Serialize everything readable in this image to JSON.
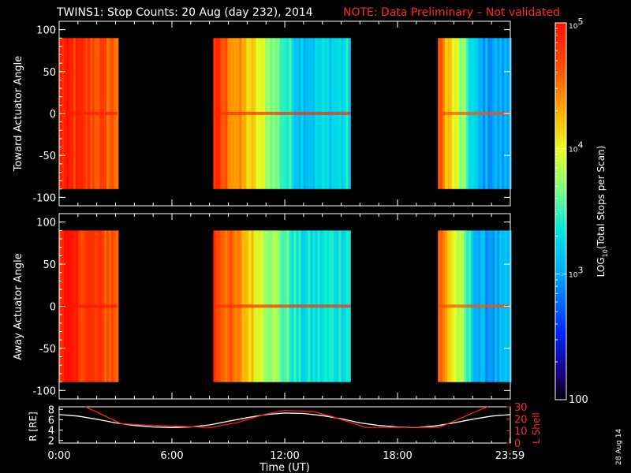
{
  "header": {
    "title": "TWINS1: Stop Counts: 20 Aug (day 232), 2014",
    "note": "NOTE: Data Preliminary – Not validated"
  },
  "footer": {
    "stamp": "28 Aug 14"
  },
  "colors": {
    "background": "#000000",
    "axes": "#ffffff",
    "note": "#ff2a2a",
    "l_shell_line": "#ff2020",
    "r_line": "#ffffff"
  },
  "chart_data": [
    {
      "id": "toward",
      "type": "heatmap",
      "ylabel": "Toward Actuator Angle",
      "ylim": [
        -110,
        110
      ],
      "yticks": [
        100,
        50,
        0,
        -50,
        -100
      ],
      "xlim": [
        0,
        24
      ],
      "data_y_range": [
        -90,
        90
      ],
      "scale": "log",
      "segments": [
        {
          "start": 0.0,
          "end": 3.1,
          "level_lo": 4.5,
          "level_hi": 4.9
        },
        {
          "start": 8.2,
          "end": 15.5,
          "level_lo": 3.2,
          "level_hi": 4.8
        },
        {
          "start": 20.15,
          "end": 24.0,
          "level_lo": 3.0,
          "level_hi": 4.6
        }
      ]
    },
    {
      "id": "away",
      "type": "heatmap",
      "ylabel": "Away Actuator Angle",
      "ylim": [
        -110,
        110
      ],
      "yticks": [
        100,
        50,
        0,
        -50,
        -100
      ],
      "xlim": [
        0,
        24
      ],
      "data_y_range": [
        -90,
        90
      ],
      "scale": "log",
      "segments": [
        {
          "start": 0.0,
          "end": 3.1,
          "level_lo": 4.4,
          "level_hi": 4.95
        },
        {
          "start": 8.2,
          "end": 15.5,
          "level_lo": 3.3,
          "level_hi": 4.8
        },
        {
          "start": 20.15,
          "end": 24.0,
          "level_lo": 3.0,
          "level_hi": 4.6
        }
      ]
    },
    {
      "id": "orbit",
      "type": "line",
      "ylabel_left": "R [RE]",
      "ylabel_right": "L Shell",
      "xlabel": "Time (UT)",
      "xticks": [
        "0:00",
        "6:00",
        "12:00",
        "18:00",
        "23:59"
      ],
      "xtick_values": [
        0,
        6,
        12,
        18,
        23.98
      ],
      "xlim": [
        0,
        24
      ],
      "ylim_left": [
        1.5,
        8.5
      ],
      "yticks_left": [
        8,
        6,
        4,
        2
      ],
      "ylim_right": [
        0,
        30
      ],
      "yticks_right": [
        30,
        20,
        10,
        0
      ],
      "series": [
        {
          "axis": "left",
          "color": "#ffffff",
          "x": [
            0,
            1,
            2,
            3,
            4,
            5,
            6,
            7,
            8,
            9,
            10,
            11,
            12,
            13,
            14,
            15,
            16,
            17,
            18,
            19,
            20,
            21,
            22,
            23,
            24
          ],
          "y": [
            7.0,
            6.7,
            6.1,
            5.4,
            4.9,
            4.6,
            4.5,
            4.6,
            5.0,
            5.7,
            6.4,
            7.0,
            7.3,
            7.2,
            6.8,
            6.2,
            5.4,
            4.9,
            4.6,
            4.5,
            4.8,
            5.4,
            6.1,
            6.7,
            7.0
          ]
        },
        {
          "axis": "right",
          "color": "#ff2020",
          "x": [
            1.4,
            2.5,
            3.3,
            4.5,
            6.0,
            7.0,
            8.1,
            9.5,
            11.0,
            12.0,
            13.5,
            14.5,
            15.5,
            16.3,
            18.0,
            19.5,
            20.2,
            21.0,
            22.0,
            22.8
          ],
          "y": [
            30,
            22,
            16,
            15,
            14,
            13.5,
            13,
            17,
            24,
            27,
            26,
            22,
            17,
            13,
            13,
            13,
            13,
            18,
            25,
            30
          ]
        }
      ]
    }
  ],
  "colorbar": {
    "label": "LOG10(Total Stops per Scan)",
    "label_main": "LOG",
    "label_sub": "10",
    "label_rest": "(Total Stops per Scan)",
    "range_log": [
      2,
      5
    ],
    "ticks": [
      {
        "level": 5,
        "base": "10",
        "exp": "5"
      },
      {
        "level": 4,
        "base": "10",
        "exp": "4"
      },
      {
        "level": 3,
        "base": "10",
        "exp": "3"
      },
      {
        "level": 2,
        "base": "100",
        "exp": ""
      }
    ]
  }
}
